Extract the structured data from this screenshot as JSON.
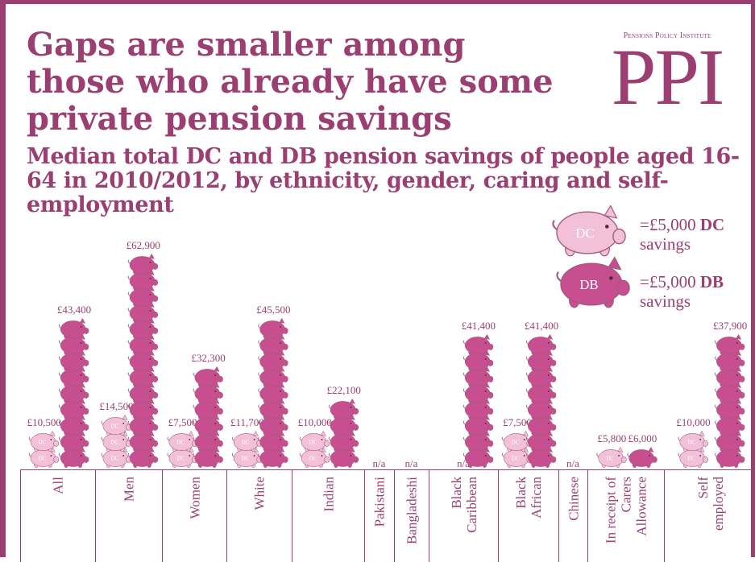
{
  "header": {
    "title": "Gaps are smaller among those who already have some private pension savings",
    "subtitle": "Median total DC and DB pension savings of people aged 16-64 in 2010/2012, by ethnicity, gender, caring and self-employment"
  },
  "logo": {
    "org_name": "Pensions Policy Institute",
    "mark": "PPI"
  },
  "legend": {
    "dc": {
      "icon_label": "DC",
      "value_text": "=£5,000",
      "type_text": "DC",
      "line2": "savings"
    },
    "db": {
      "icon_label": "DB",
      "value_text": "=£5,000",
      "type_text": "DB",
      "line2": "savings"
    }
  },
  "colors": {
    "brand": "#9b3f73",
    "dc_pig": "#f2c1d8",
    "db_pig": "#c74f8f",
    "pig_outline": "#a05a7e"
  },
  "chart_data": {
    "type": "bar",
    "unit": "£5,000 per pig icon",
    "categories": [
      "All",
      "Men",
      "Women",
      "White",
      "Indian",
      "Pakistani",
      "Bangladeshi",
      "Black\nCaribbean",
      "Black\nAfrican",
      "Chinese",
      "In receipt of\nCarers\nAllowance",
      "Self\nemployed"
    ],
    "series": [
      {
        "name": "DC",
        "values": [
          10500,
          14500,
          7500,
          11700,
          10000,
          null,
          null,
          null,
          7500,
          null,
          5800,
          10000
        ],
        "labels": [
          "£10,500",
          "£14,500",
          "£7,500",
          "£11,700",
          "£10,000",
          "n/a",
          "n/a",
          "n/a",
          "£7,500",
          "n/a",
          "£5,800",
          "£10,000"
        ]
      },
      {
        "name": "DB",
        "values": [
          43400,
          62900,
          32300,
          45500,
          22100,
          null,
          null,
          41400,
          41400,
          null,
          6000,
          37900
        ],
        "labels": [
          "£43,400",
          "£62,900",
          "£32,300",
          "£45,500",
          "£22,100",
          "",
          "n/a",
          "£41,400",
          "£41,400",
          "",
          "£6,000",
          "£37,900"
        ]
      }
    ]
  }
}
